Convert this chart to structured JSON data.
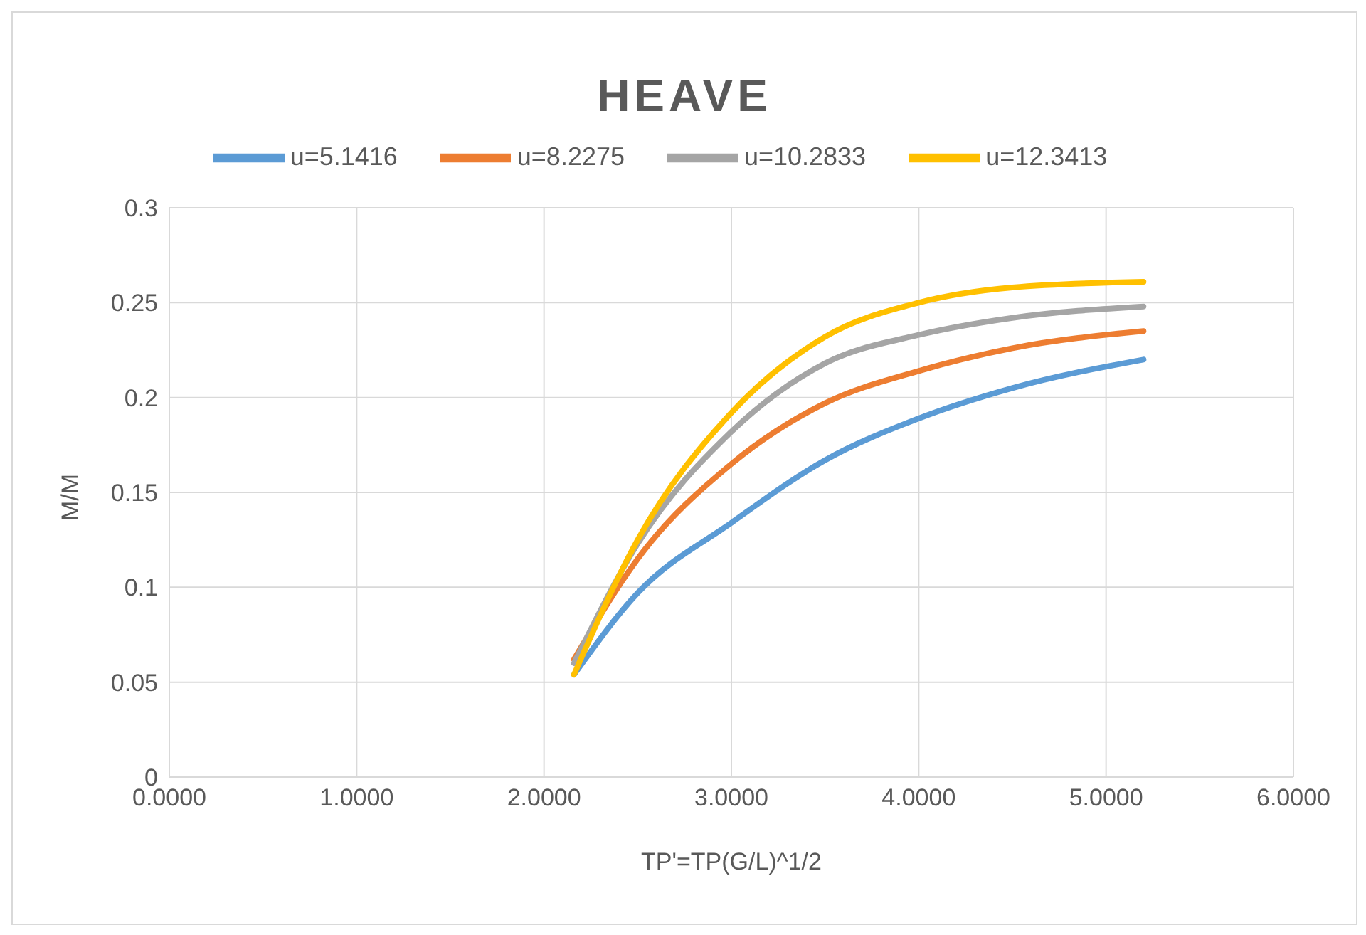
{
  "chart_data": {
    "type": "line",
    "title": "HEAVE",
    "xlabel": "TP'=TP(G/L)^1/2",
    "ylabel": "M/M",
    "x": [
      2.16,
      2.5,
      3.0,
      3.5,
      4.0,
      4.5,
      5.2
    ],
    "series": [
      {
        "name": "u=5.1416",
        "color": "#5b9bd5",
        "values": [
          0.054,
          0.097,
          0.134,
          0.167,
          0.189,
          0.205,
          0.22
        ]
      },
      {
        "name": "u=8.2275",
        "color": "#ed7d31",
        "values": [
          0.062,
          0.115,
          0.165,
          0.197,
          0.214,
          0.226,
          0.235
        ]
      },
      {
        "name": "u=10.2833",
        "color": "#a5a5a5",
        "values": [
          0.06,
          0.123,
          0.182,
          0.218,
          0.233,
          0.242,
          0.248
        ]
      },
      {
        "name": "u=12.3413",
        "color": "#ffc000",
        "values": [
          0.054,
          0.125,
          0.192,
          0.232,
          0.25,
          0.258,
          0.261
        ]
      }
    ],
    "xlim": [
      0,
      6
    ],
    "xticks": [
      {
        "value": 0,
        "label": "0.0000"
      },
      {
        "value": 1,
        "label": "1.0000"
      },
      {
        "value": 2,
        "label": "2.0000"
      },
      {
        "value": 3,
        "label": "3.0000"
      },
      {
        "value": 4,
        "label": "4.0000"
      },
      {
        "value": 5,
        "label": "5.0000"
      },
      {
        "value": 6,
        "label": "6.0000"
      }
    ],
    "ylim": [
      0,
      0.3
    ],
    "yticks": [
      0,
      0.05,
      0.1,
      0.15,
      0.2,
      0.25,
      0.3
    ],
    "grid": true,
    "legend": "top",
    "marker": "none",
    "line_style": "solid"
  }
}
